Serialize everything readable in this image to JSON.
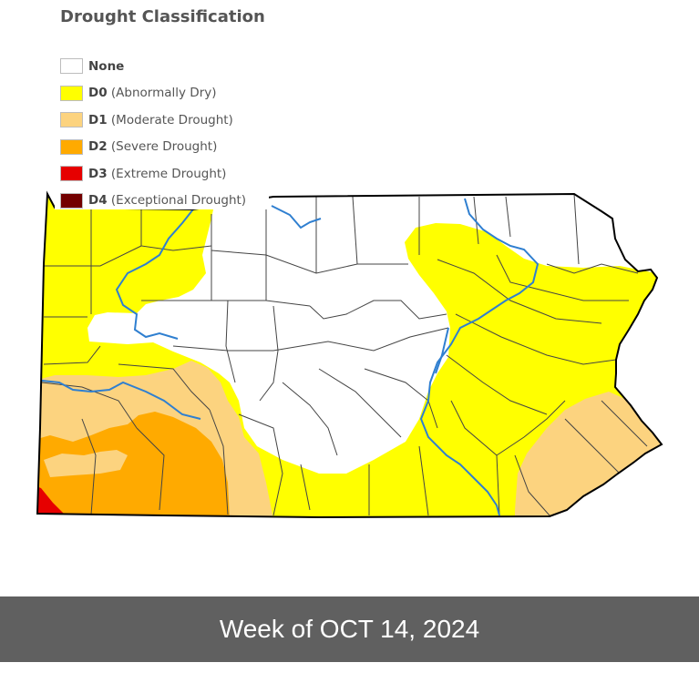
{
  "title": "Drought Classification",
  "legend": [
    {
      "code": "None",
      "desc": "",
      "color": "#ffffff"
    },
    {
      "code": "D0",
      "desc": "(Abnormally Dry)",
      "color": "#ffff00"
    },
    {
      "code": "D1",
      "desc": "(Moderate Drought)",
      "color": "#fcd37f"
    },
    {
      "code": "D2",
      "desc": "(Severe Drought)",
      "color": "#ffaa00"
    },
    {
      "code": "D3",
      "desc": "(Extreme Drought)",
      "color": "#e60000"
    },
    {
      "code": "D4",
      "desc": "(Exceptional Drought)",
      "color": "#730000"
    }
  ],
  "map": {
    "region": "Pennsylvania",
    "colors": {
      "outline": "#000000",
      "county_line": "#444444",
      "river": "#2f7fd0",
      "none": "#ffffff"
    }
  },
  "footer": {
    "text": "Week of OCT 14, 2024",
    "background": "#606060"
  }
}
